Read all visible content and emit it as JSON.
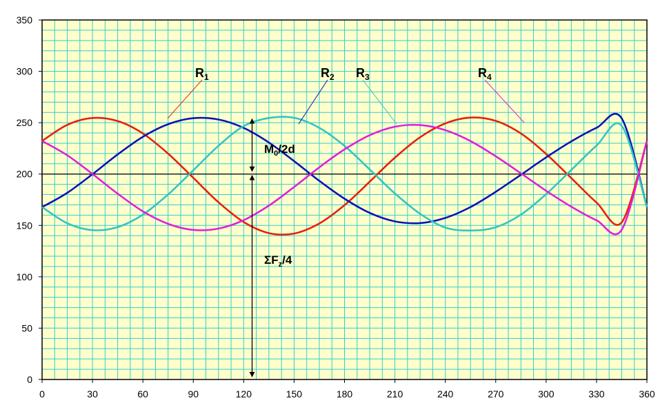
{
  "chart_data": {
    "type": "line",
    "xlim": [
      0,
      360
    ],
    "ylim": [
      0,
      350
    ],
    "x_ticks": [
      "0",
      "30",
      "60",
      "90",
      "120",
      "150",
      "180",
      "210",
      "240",
      "270",
      "300",
      "330",
      "360"
    ],
    "y_ticks": [
      "0",
      "50",
      "100",
      "150",
      "200",
      "250",
      "300",
      "350"
    ],
    "grid": "on",
    "background": "#ffffcc",
    "grid_color": "#33cccc",
    "x": [
      0,
      15,
      30,
      45,
      60,
      75,
      90,
      105,
      120,
      135,
      150,
      165,
      180,
      195,
      210,
      225,
      240,
      255,
      270,
      285,
      300,
      315,
      330,
      345,
      360
    ],
    "series": [
      {
        "name": "R",
        "subscript": "1",
        "color": "#e8200c",
        "values": [
          232.2,
          247.9,
          254.6,
          251.6,
          239.5,
          219.9,
          196.3,
          172.5,
          153.3,
          142.5,
          142.1,
          151.9,
          169.7,
          192.6,
          216.0,
          235.8,
          249.3,
          255.0,
          251.8,
          239.5,
          219.6,
          196.0,
          172.3,
          153.1,
          232.2
        ]
      },
      {
        "name": "R",
        "subscript": "2",
        "color": "#0a14b4",
        "values": [
          167.8,
          181.7,
          199.9,
          219.1,
          236.3,
          248.5,
          254.4,
          253.1,
          244.9,
          230.7,
          212.6,
          193.4,
          176.0,
          162.2,
          153.9,
          152.3,
          157.3,
          167.9,
          182.7,
          199.3,
          216.2,
          231.8,
          245.0,
          254.2,
          167.8
        ]
      },
      {
        "name": "R",
        "subscript": "3",
        "color": "#33c4c4",
        "values": [
          167.8,
          152.1,
          145.4,
          148.4,
          160.5,
          180.1,
          203.7,
          227.5,
          246.7,
          254.6,
          254.8,
          245.0,
          227.4,
          204.5,
          181.1,
          161.3,
          147.9,
          145.0,
          148.2,
          160.5,
          180.4,
          204.0,
          227.7,
          246.9,
          167.8
        ]
      },
      {
        "name": "R",
        "subscript": "4",
        "color": "#e020d8",
        "values": [
          232.2,
          218.3,
          200.1,
          180.9,
          163.7,
          151.5,
          145.6,
          146.9,
          155.1,
          169.3,
          187.4,
          206.6,
          224.0,
          237.8,
          246.1,
          247.7,
          242.7,
          232.1,
          217.3,
          200.7,
          183.8,
          168.2,
          155.0,
          145.8,
          232.2
        ]
      }
    ],
    "reference_line_y": 200,
    "annotations": [
      {
        "text": "M",
        "subscript": "0",
        "suffix": "/2d",
        "x": 125,
        "y_from": 200,
        "y_to": 255
      },
      {
        "text": "ΣF",
        "subscript": "z",
        "suffix": "/4",
        "x": 125,
        "y_from": 0,
        "y_to": 200
      }
    ]
  }
}
